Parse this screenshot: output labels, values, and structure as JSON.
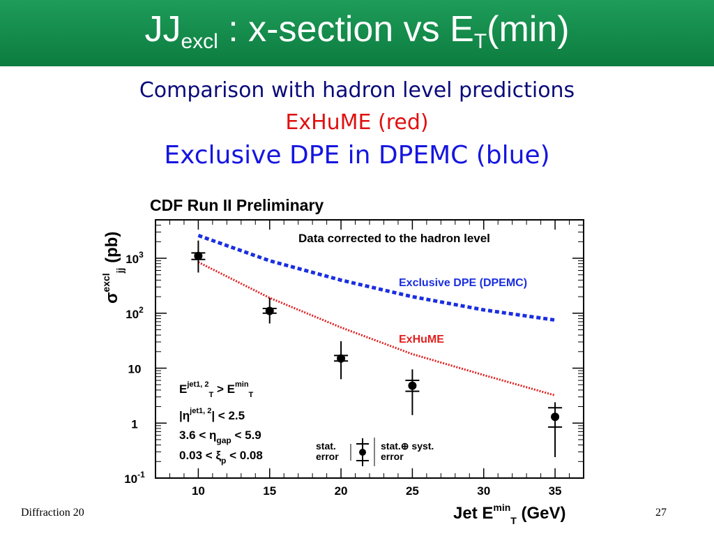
{
  "slide": {
    "title_main": "JJ",
    "title_sub": "excl",
    "title_rest": " : x-section vs E",
    "title_sub2": "T",
    "title_end": "(min)",
    "subtitle_1": "Comparison with hadron level predictions",
    "subtitle_2": "ExHuME (red)",
    "subtitle_3": "Exclusive DPE in DPEMC (blue)",
    "footer_left": "Diffraction 20",
    "page_number": "27"
  },
  "chart_data": {
    "type": "scatter",
    "title": "CDF Run II Preliminary",
    "annotation": "Data corrected to the hadron level",
    "xlabel": "Jet E",
    "xlabel_sup": "min",
    "xlabel_sub": "T",
    "xlabel_unit": " (GeV)",
    "ylabel": "σ",
    "ylabel_sup": "excl",
    "ylabel_sub": "jj",
    "ylabel_unit": " (pb)",
    "x_scale": "linear",
    "y_scale": "log",
    "xlim": [
      7,
      37
    ],
    "ylim": [
      0.1,
      5000
    ],
    "x_ticks": [
      "10",
      "15",
      "20",
      "25",
      "30",
      "35"
    ],
    "y_ticks": [
      {
        "value": 1000,
        "base": "10",
        "exp": "3"
      },
      {
        "value": 100,
        "base": "10",
        "exp": "2"
      },
      {
        "value": 10,
        "base": "10",
        "exp": ""
      },
      {
        "value": 1,
        "base": "1",
        "exp": ""
      },
      {
        "value": 0.1,
        "base": "10",
        "exp": "-1"
      }
    ],
    "data_points": [
      {
        "x": 10,
        "y": 1100,
        "stat_low": 950,
        "stat_high": 1250,
        "tot_low": 550,
        "tot_high": 2100
      },
      {
        "x": 15,
        "y": 110,
        "stat_low": 100,
        "stat_high": 122,
        "tot_low": 65,
        "tot_high": 190
      },
      {
        "x": 20,
        "y": 15,
        "stat_low": 13.5,
        "stat_high": 17,
        "tot_low": 6.3,
        "tot_high": 31
      },
      {
        "x": 25,
        "y": 4.8,
        "stat_low": 3.8,
        "stat_high": 6.0,
        "tot_low": 1.4,
        "tot_high": 9.5
      },
      {
        "x": 35,
        "y": 1.3,
        "stat_low": 0.85,
        "stat_high": 1.9,
        "tot_low": 0.24,
        "tot_high": 2.4
      }
    ],
    "series": [
      {
        "label": "Exclusive DPE (DPEMC)",
        "color": "#1a2ee0",
        "x": [
          10,
          15,
          20,
          25,
          30,
          35
        ],
        "y": [
          2600,
          900,
          400,
          200,
          115,
          75
        ]
      },
      {
        "label": "ExHuME",
        "color": "#e02020",
        "x": [
          10,
          15,
          20,
          25,
          30,
          35
        ],
        "y": [
          850,
          190,
          55,
          18,
          7.5,
          3.2
        ]
      }
    ],
    "cuts": [
      {
        "pre": "E",
        "sub": "T",
        "sup": "jet1, 2",
        "mid": " > E",
        "sub2": "T",
        "sup2": "min",
        "post": ""
      },
      {
        "pre": "|η",
        "sub": "",
        "sup": "jet1, 2",
        "mid": "| < 2.5",
        "sub2": "",
        "sup2": "",
        "post": ""
      },
      {
        "pre": "3.6 < η",
        "sub": "gap",
        "sup": "",
        "mid": " < 5.9",
        "sub2": "",
        "sup2": "",
        "post": ""
      },
      {
        "pre": "0.03 < ξ",
        "sub": "p",
        "sup": "",
        "mid": " < 0.08",
        "sub2": "",
        "sup2": "",
        "post": ""
      }
    ],
    "error_legend": {
      "stat_1": "stat.",
      "stat_2": "error",
      "syst_1": "stat.⊕ syst.",
      "syst_2": "error"
    },
    "colors": {
      "data": "#000000",
      "dpemc": "#1a2ee0",
      "exhume": "#e02020"
    }
  }
}
